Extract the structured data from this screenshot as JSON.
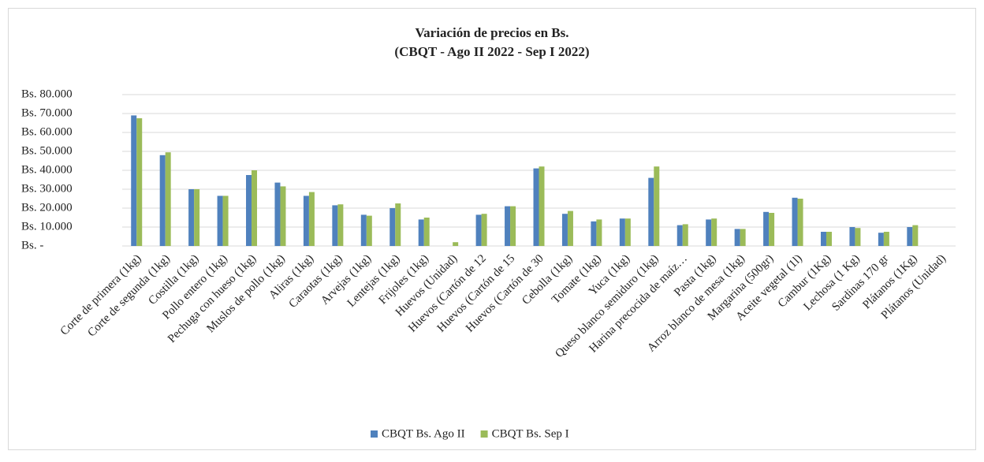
{
  "chart_data": {
    "type": "bar",
    "title": [
      "Variación de precios en Bs.",
      "(CBQT - Ago II 2022 - Sep I 2022)"
    ],
    "categories": [
      "Corte de primera (1kg)",
      "Corte de segunda (1kg)",
      "Costilla (1kg)",
      "Pollo entero (1kg)",
      "Pechuga con hueso (1kg)",
      "Muslos de pollo (1kg)",
      "Aliras (1kg)",
      "Caraotas (1kg)",
      "Arvejas (1kg)",
      "Lentejas (1kg)",
      "Frijoles (1kg)",
      "Huevos (Unidad)",
      "Huevos (Cartón de 12",
      "Huevos (Cartón de 15",
      "Huevos (Cartón de 30",
      "Cebolla (1kg)",
      "Tomate (1kg)",
      "Yuca (1kg)",
      "Queso blanco semiduro (1kg)",
      "Harina precocida de maíz…",
      "Pasta (1kg)",
      "Arroz blanco de mesa (1kg)",
      "Margarina (500gr)",
      "Aceite vegetal (1l)",
      "Cambur (1Kg)",
      "Lechosa (1 Kg)",
      "Sardinas 170 gr",
      "Plátanos (1Kg)",
      "Plátanos (Unidad)"
    ],
    "series": [
      {
        "name": "CBQT Bs. Ago II",
        "color": "#4f81bd",
        "values": [
          69000,
          48000,
          30000,
          26500,
          37500,
          33500,
          26500,
          21500,
          16500,
          20000,
          14000,
          null,
          16500,
          21000,
          41000,
          17000,
          13000,
          14500,
          36000,
          11000,
          14000,
          9000,
          18000,
          25500,
          7500,
          10000,
          7000,
          10000,
          null
        ]
      },
      {
        "name": "CBQT Bs. Sep I",
        "color": "#9bbb59",
        "values": [
          67500,
          49500,
          30000,
          26500,
          40000,
          31500,
          28500,
          22000,
          16000,
          22500,
          15000,
          2000,
          17000,
          21000,
          42000,
          18500,
          14000,
          14500,
          42000,
          11500,
          14500,
          9000,
          17500,
          25000,
          7500,
          9500,
          7500,
          11000,
          null
        ]
      }
    ],
    "ylim": [
      0,
      80000
    ],
    "yticks": [
      {
        "value": 0,
        "label": "Bs. -"
      },
      {
        "value": 10000,
        "label": "Bs. 10.000"
      },
      {
        "value": 20000,
        "label": "Bs. 20.000"
      },
      {
        "value": 30000,
        "label": "Bs. 30.000"
      },
      {
        "value": 40000,
        "label": "Bs. 40.000"
      },
      {
        "value": 50000,
        "label": "Bs. 50.000"
      },
      {
        "value": 60000,
        "label": "Bs. 60.000"
      },
      {
        "value": 70000,
        "label": "Bs. 70.000"
      },
      {
        "value": 80000,
        "label": "Bs. 80.000"
      }
    ],
    "grid": true,
    "legend": "bottom"
  }
}
